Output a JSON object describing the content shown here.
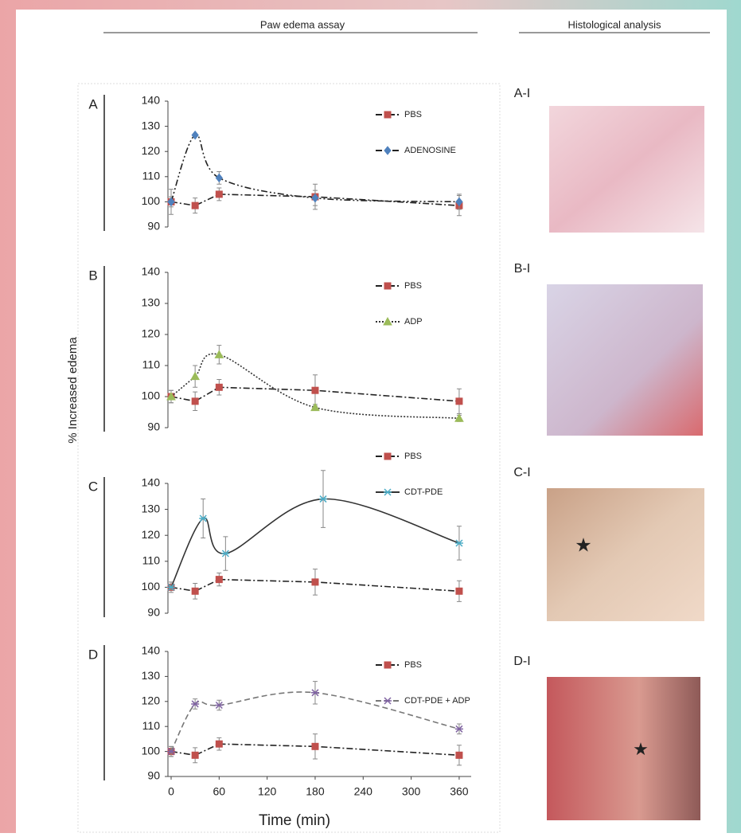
{
  "headers": [
    "Paw edema assay",
    "Histological analysis"
  ],
  "y_label": "% Increased edema",
  "x_label": "Time (min)",
  "chart_data": [
    {
      "type": "line",
      "panel": "A",
      "image_label": "A-I",
      "ylim": [
        90,
        140
      ],
      "yticks": [
        90,
        100,
        110,
        120,
        130,
        140
      ],
      "xlim": [
        0,
        375
      ],
      "legend": "upper right",
      "series": [
        {
          "name": "PBS",
          "color": "#c0504d",
          "marker": "square",
          "line_color": "#222",
          "dash": "8 3 2 3",
          "smooth": false,
          "x": [
            0,
            30,
            60,
            180,
            360
          ],
          "values": [
            100,
            98.5,
            103,
            102,
            98.5
          ],
          "errors": [
            2,
            3,
            2.5,
            5,
            4
          ]
        },
        {
          "name": "ADENOSINE",
          "color": "#4f81bd",
          "marker": "diamond",
          "line_color": "#222",
          "dash": "8 3 2 3 2 3",
          "smooth": true,
          "x": [
            0,
            30,
            60,
            180,
            360
          ],
          "values": [
            100,
            126.5,
            109.5,
            101.5,
            100
          ],
          "errors": [
            5,
            0.5,
            2.5,
            3,
            3
          ]
        }
      ]
    },
    {
      "type": "line",
      "panel": "B",
      "image_label": "B-I",
      "ylim": [
        90,
        140
      ],
      "yticks": [
        90,
        100,
        110,
        120,
        130,
        140
      ],
      "xlim": [
        0,
        375
      ],
      "legend": "upper right",
      "series": [
        {
          "name": "PBS",
          "color": "#c0504d",
          "marker": "square",
          "line_color": "#222",
          "dash": "8 3 2 3",
          "smooth": false,
          "x": [
            0,
            30,
            60,
            180,
            360
          ],
          "values": [
            100,
            98.5,
            103,
            102,
            98.5
          ],
          "errors": [
            2,
            3,
            2.5,
            5,
            4
          ]
        },
        {
          "name": "ADP",
          "color": "#9bbb59",
          "marker": "triangle",
          "line_color": "#333",
          "dash": "2 2",
          "smooth": true,
          "x": [
            0,
            30,
            60,
            180,
            360
          ],
          "values": [
            100,
            106.5,
            113.5,
            96.5,
            93
          ],
          "errors": [
            2,
            3.5,
            3,
            1,
            1
          ]
        }
      ]
    },
    {
      "type": "line",
      "panel": "C",
      "image_label": "C-I",
      "ylim": [
        90,
        140
      ],
      "yticks": [
        90,
        100,
        110,
        120,
        130,
        140
      ],
      "xlim": [
        0,
        375
      ],
      "legend": "upper right",
      "series": [
        {
          "name": "PBS",
          "color": "#c0504d",
          "marker": "square",
          "line_color": "#222",
          "dash": "8 3 2 3",
          "smooth": false,
          "x": [
            0,
            30,
            60,
            180,
            360
          ],
          "values": [
            100,
            98.5,
            103,
            102,
            98.5
          ],
          "errors": [
            2,
            3,
            2.5,
            5,
            4
          ]
        },
        {
          "name": "CDT-PDE",
          "color": "#4bacc6",
          "marker": "star",
          "line_color": "#333",
          "dash": "none",
          "smooth": true,
          "x": [
            0,
            40,
            68,
            190,
            360
          ],
          "values": [
            100,
            126.5,
            113,
            134,
            117
          ],
          "errors": [
            1,
            7.5,
            6.5,
            11,
            6.5
          ]
        }
      ]
    },
    {
      "type": "line",
      "panel": "D",
      "image_label": "D-I",
      "ylim": [
        90,
        140
      ],
      "yticks": [
        90,
        100,
        110,
        120,
        130,
        140
      ],
      "xlim": [
        0,
        375
      ],
      "xticks": [
        0,
        60,
        120,
        180,
        240,
        300,
        360
      ],
      "legend": "upper right",
      "series": [
        {
          "name": "PBS",
          "color": "#c0504d",
          "marker": "square",
          "line_color": "#222",
          "dash": "8 3 2 3",
          "smooth": false,
          "x": [
            0,
            30,
            60,
            180,
            360
          ],
          "values": [
            100,
            98.5,
            103,
            102,
            98.5
          ],
          "errors": [
            2,
            3,
            2.5,
            5,
            4
          ]
        },
        {
          "name": "CDT-PDE + ADP",
          "color": "#8064a2",
          "marker": "star",
          "line_color": "#777",
          "dash": "7 4",
          "smooth": true,
          "x": [
            0,
            30,
            60,
            180,
            360
          ],
          "values": [
            100,
            119,
            118.5,
            123.5,
            109
          ],
          "errors": [
            2,
            2,
            2,
            4.5,
            2
          ]
        }
      ]
    }
  ]
}
